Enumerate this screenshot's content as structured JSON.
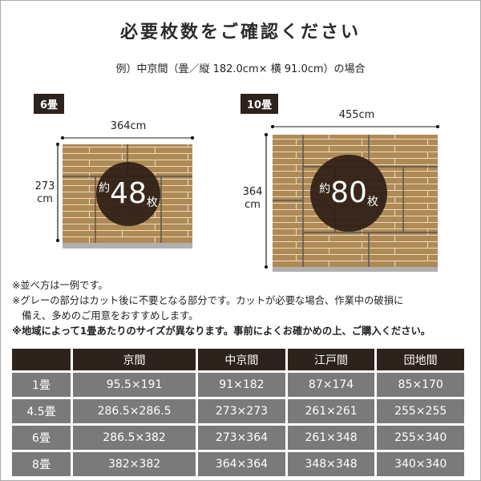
{
  "title": "必要枚数をご確認ください",
  "subtitle": "例）中京間（畳／縦 182.0cm× 横 91.0cm）の場合",
  "examples": [
    {
      "tag": "6畳",
      "width": "364cm",
      "height": "273",
      "height_unit": "cm",
      "prefix": "約",
      "count": "48",
      "suffix": "枚"
    },
    {
      "tag": "10畳",
      "width": "455cm",
      "height": "364",
      "height_unit": "cm",
      "prefix": "約",
      "count": "80",
      "suffix": "枚"
    }
  ],
  "colors": {
    "brick": "#b08a55",
    "dark": "#2e221c",
    "cut_area": "#b0b0b0",
    "table_cell": "#7a7a7a"
  },
  "notes": [
    "※並べ方は一例です。",
    "※グレーの部分はカット後に不要となる部分です。カットが必要な場合、作業中の破損に",
    "　備え、多めのご用意をおすすめします。",
    "※地域によって1畳あたりのサイズが異なります。事前によくお確かめの上、ご購入ください。"
  ],
  "table": {
    "headers": [
      "",
      "京間",
      "中京間",
      "江戸間",
      "団地間"
    ],
    "rows": [
      [
        "1畳",
        "95.5×191",
        "91×182",
        "87×174",
        "85×170"
      ],
      [
        "4.5畳",
        "286.5×286.5",
        "273×273",
        "261×261",
        "255×255"
      ],
      [
        "6畳",
        "286.5×382",
        "273×364",
        "261×348",
        "255×340"
      ],
      [
        "8畳",
        "382×382",
        "364×364",
        "348×348",
        "340×340"
      ]
    ]
  }
}
